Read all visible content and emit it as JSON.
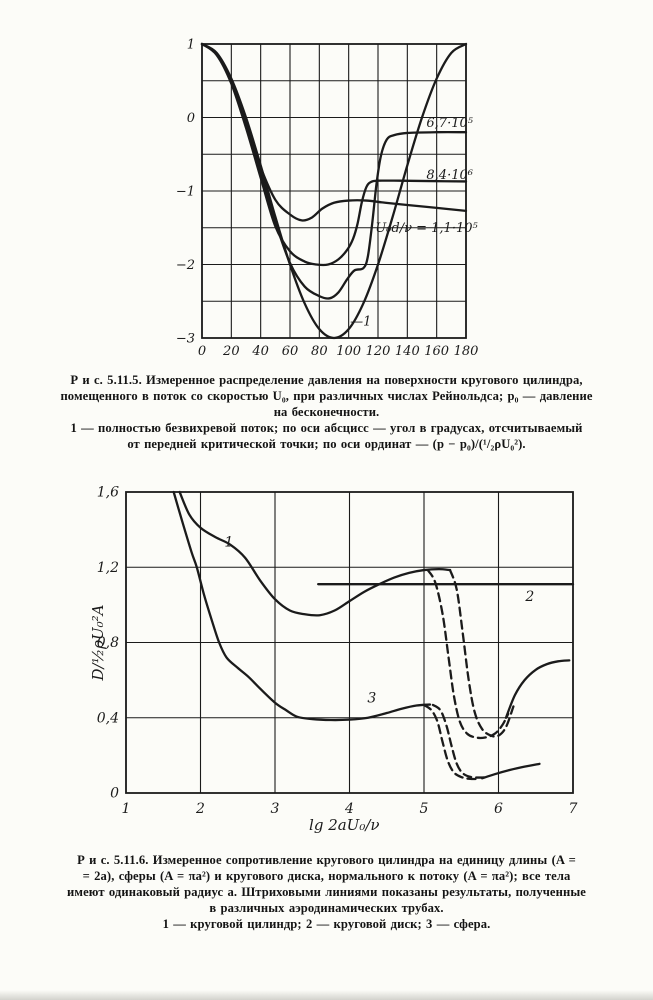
{
  "page": {
    "background": "#fcfcf8",
    "ink": "#1b1b1b"
  },
  "figures": {
    "fig_5_11_5": {
      "caption_lines": [
        "Р и с. 5.11.5. Измеренное распределение давления на поверхности кругового цилиндра,",
        "помещенного в поток со скоростью U₀, при различных числах Рейнольдса; p₀ — давление",
        "на бесконечности.",
        "1 — полностью безвихревой поток; по оси абсцисс — угол в градусах, отсчитываемый",
        "от передней критической точки; по оси ординат — (p − p₀)/(¹/₂ρU₀²)."
      ]
    },
    "fig_5_11_6": {
      "caption_lines": [
        "Р и с. 5.11.6. Измеренное сопротивление кругового цилиндра на единицу длины (A =",
        "= 2a), сферы (A = πa²) и кругового диска, нормального к потоку (A = πa²); все тела",
        "имеют одинаковый радиус a. Штриховыми линиями показаны результаты, полученные",
        "в различных аэродинамических трубах.",
        "1 — круговой цилиндр; 2 — круговой диск; 3 — сфера."
      ]
    }
  },
  "chart_data": [
    {
      "id": "pressure",
      "type": "line",
      "title": "",
      "xlabel": "",
      "ylabel": "",
      "xlim": [
        0,
        180
      ],
      "ylim": [
        -3,
        1
      ],
      "grid": true,
      "x_gridlines": [
        0,
        20,
        40,
        60,
        80,
        100,
        120,
        140,
        160,
        180
      ],
      "y_gridlines": [
        1,
        0.5,
        0,
        -0.5,
        -1,
        -1.5,
        -2,
        -2.5,
        -3
      ],
      "x_ticks": [
        {
          "v": 0,
          "label": "0"
        },
        {
          "v": 20,
          "label": "20"
        },
        {
          "v": 40,
          "label": "40"
        },
        {
          "v": 60,
          "label": "60"
        },
        {
          "v": 80,
          "label": "80"
        },
        {
          "v": 100,
          "label": "100"
        },
        {
          "v": 120,
          "label": "120"
        },
        {
          "v": 140,
          "label": "140"
        },
        {
          "v": 160,
          "label": "160"
        },
        {
          "v": 180,
          "label": "180"
        }
      ],
      "y_ticks": [
        {
          "v": 1,
          "label": "1"
        },
        {
          "v": 0,
          "label": "0"
        },
        {
          "v": -1,
          "label": "−1"
        },
        {
          "v": -2,
          "label": "−2"
        },
        {
          "v": -3,
          "label": "−3"
        }
      ],
      "series": [
        {
          "name": "irrotational-flow-1",
          "dash": false,
          "points": [
            [
              0,
              1
            ],
            [
              10,
              0.88
            ],
            [
              20,
              0.53
            ],
            [
              30,
              0
            ],
            [
              40,
              -0.65
            ],
            [
              50,
              -1.35
            ],
            [
              60,
              -2
            ],
            [
              70,
              -2.53
            ],
            [
              80,
              -2.88
            ],
            [
              90,
              -3
            ],
            [
              100,
              -2.88
            ],
            [
              110,
              -2.53
            ],
            [
              120,
              -2
            ],
            [
              130,
              -1.35
            ],
            [
              140,
              -0.65
            ],
            [
              150,
              0
            ],
            [
              160,
              0.53
            ],
            [
              170,
              0.88
            ],
            [
              180,
              1
            ]
          ]
        },
        {
          "name": "re-1.1e5",
          "dash": false,
          "points": [
            [
              0,
              1
            ],
            [
              10,
              0.86
            ],
            [
              20,
              0.48
            ],
            [
              30,
              -0.1
            ],
            [
              40,
              -0.68
            ],
            [
              50,
              -1.12
            ],
            [
              60,
              -1.32
            ],
            [
              68,
              -1.4
            ],
            [
              75,
              -1.36
            ],
            [
              82,
              -1.24
            ],
            [
              90,
              -1.16
            ],
            [
              100,
              -1.13
            ],
            [
              112,
              -1.13
            ],
            [
              125,
              -1.16
            ],
            [
              140,
              -1.19
            ],
            [
              160,
              -1.23
            ],
            [
              180,
              -1.27
            ]
          ]
        },
        {
          "name": "re-6.7e5",
          "dash": false,
          "points": [
            [
              0,
              1
            ],
            [
              10,
              0.87
            ],
            [
              20,
              0.5
            ],
            [
              30,
              -0.06
            ],
            [
              40,
              -0.75
            ],
            [
              50,
              -1.42
            ],
            [
              60,
              -1.98
            ],
            [
              70,
              -2.3
            ],
            [
              80,
              -2.43
            ],
            [
              87,
              -2.46
            ],
            [
              93,
              -2.38
            ],
            [
              99,
              -2.2
            ],
            [
              104,
              -2.08
            ],
            [
              110,
              -2.05
            ],
            [
              113,
              -1.9
            ],
            [
              116,
              -1.45
            ],
            [
              119,
              -0.9
            ],
            [
              122,
              -0.52
            ],
            [
              126,
              -0.3
            ],
            [
              131,
              -0.24
            ],
            [
              140,
              -0.21
            ],
            [
              160,
              -0.2
            ],
            [
              180,
              -0.2
            ]
          ]
        },
        {
          "name": "re-8.4e6",
          "dash": false,
          "points": [
            [
              0,
              1
            ],
            [
              10,
              0.85
            ],
            [
              20,
              0.46
            ],
            [
              30,
              -0.14
            ],
            [
              40,
              -0.82
            ],
            [
              50,
              -1.48
            ],
            [
              60,
              -1.82
            ],
            [
              70,
              -1.96
            ],
            [
              78,
              -2
            ],
            [
              86,
              -2
            ],
            [
              93,
              -1.93
            ],
            [
              99,
              -1.8
            ],
            [
              103,
              -1.65
            ],
            [
              106,
              -1.45
            ],
            [
              109,
              -1.15
            ],
            [
              112,
              -0.95
            ],
            [
              115,
              -0.88
            ],
            [
              120,
              -0.86
            ],
            [
              135,
              -0.86
            ],
            [
              155,
              -0.865
            ],
            [
              180,
              -0.87
            ]
          ]
        }
      ],
      "annotations": [
        {
          "text": "6,7·10⁵",
          "x": 153,
          "y": -0.13,
          "anchor": "start",
          "fs": 13
        },
        {
          "text": "8,4·10⁶",
          "x": 153,
          "y": -0.84,
          "anchor": "start",
          "fs": 13
        },
        {
          "text": "U₀d/ν = 1,1·10⁵",
          "x": 188,
          "y": -1.56,
          "anchor": "end",
          "fs": 13
        },
        {
          "text": "—1",
          "x": 101,
          "y": -2.83,
          "anchor": "start",
          "fs": 13
        }
      ]
    },
    {
      "id": "drag",
      "type": "line",
      "title": "",
      "xlabel": "lg 2aU₀/ν",
      "xlabel_x": 3.93,
      "ylabel": "D/½ρU₀²A",
      "xlim": [
        1,
        7
      ],
      "ylim": [
        0,
        1.6
      ],
      "grid": true,
      "x_gridlines": [
        1,
        2,
        3,
        4,
        5,
        6,
        7
      ],
      "y_gridlines": [
        0,
        0.4,
        0.8,
        1.2,
        1.6
      ],
      "x_ticks": [
        {
          "v": 1,
          "label": "1"
        },
        {
          "v": 2,
          "label": "2"
        },
        {
          "v": 3,
          "label": "3"
        },
        {
          "v": 4,
          "label": "4"
        },
        {
          "v": 5,
          "label": "5"
        },
        {
          "v": 6,
          "label": "6"
        },
        {
          "v": 7,
          "label": "7"
        }
      ],
      "y_ticks": [
        {
          "v": 0,
          "label": "0"
        },
        {
          "v": 0.4,
          "label": "0,4"
        },
        {
          "v": 0.8,
          "label": "0,8"
        },
        {
          "v": 1.2,
          "label": "1,2"
        },
        {
          "v": 1.6,
          "label": "1,6"
        }
      ],
      "series": [
        {
          "name": "cylinder-1",
          "dash": false,
          "points": [
            [
              1.72,
              1.6
            ],
            [
              1.85,
              1.48
            ],
            [
              2,
              1.41
            ],
            [
              2.2,
              1.36
            ],
            [
              2.4,
              1.32
            ],
            [
              2.6,
              1.25
            ],
            [
              2.8,
              1.13
            ],
            [
              3,
              1.03
            ],
            [
              3.2,
              0.97
            ],
            [
              3.4,
              0.95
            ],
            [
              3.6,
              0.945
            ],
            [
              3.8,
              0.97
            ],
            [
              4,
              1.02
            ],
            [
              4.2,
              1.07
            ],
            [
              4.4,
              1.11
            ],
            [
              4.6,
              1.145
            ],
            [
              4.8,
              1.17
            ],
            [
              5,
              1.185
            ],
            [
              5.2,
              1.19
            ],
            [
              5.35,
              1.185
            ]
          ]
        },
        {
          "name": "cylinder-drop-a",
          "dash": true,
          "points": [
            [
              5.05,
              1.185
            ],
            [
              5.15,
              1.12
            ],
            [
              5.25,
              0.95
            ],
            [
              5.33,
              0.72
            ],
            [
              5.4,
              0.52
            ],
            [
              5.48,
              0.38
            ],
            [
              5.58,
              0.315
            ],
            [
              5.7,
              0.295
            ],
            [
              5.82,
              0.295
            ],
            [
              5.95,
              0.315
            ],
            [
              6.05,
              0.36
            ],
            [
              6.13,
              0.42
            ]
          ]
        },
        {
          "name": "cylinder-drop-b",
          "dash": true,
          "points": [
            [
              5.35,
              1.185
            ],
            [
              5.44,
              1.08
            ],
            [
              5.52,
              0.85
            ],
            [
              5.6,
              0.6
            ],
            [
              5.68,
              0.43
            ],
            [
              5.78,
              0.34
            ],
            [
              5.9,
              0.305
            ],
            [
              6,
              0.305
            ],
            [
              6.1,
              0.35
            ],
            [
              6.2,
              0.46
            ]
          ]
        },
        {
          "name": "cylinder-recovery",
          "dash": false,
          "points": [
            [
              6.1,
              0.4
            ],
            [
              6.22,
              0.52
            ],
            [
              6.35,
              0.6
            ],
            [
              6.5,
              0.655
            ],
            [
              6.65,
              0.685
            ],
            [
              6.8,
              0.7
            ],
            [
              6.95,
              0.705
            ]
          ]
        },
        {
          "name": "disk-2",
          "dash": false,
          "points": [
            [
              3.58,
              1.11
            ],
            [
              7,
              1.11
            ]
          ]
        },
        {
          "name": "sphere-3",
          "dash": false,
          "points": [
            [
              1.64,
              1.6
            ],
            [
              1.75,
              1.45
            ],
            [
              1.88,
              1.28
            ],
            [
              1.95,
              1.2
            ],
            [
              2.05,
              1.05
            ],
            [
              2.15,
              0.92
            ],
            [
              2.25,
              0.8
            ],
            [
              2.35,
              0.72
            ],
            [
              2.5,
              0.665
            ],
            [
              2.65,
              0.615
            ],
            [
              2.8,
              0.555
            ],
            [
              3,
              0.48
            ],
            [
              3.15,
              0.44
            ],
            [
              3.3,
              0.405
            ],
            [
              3.5,
              0.393
            ],
            [
              3.75,
              0.388
            ],
            [
              4,
              0.39
            ],
            [
              4.25,
              0.4
            ],
            [
              4.5,
              0.425
            ],
            [
              4.7,
              0.448
            ],
            [
              4.9,
              0.465
            ],
            [
              5.08,
              0.47
            ]
          ]
        },
        {
          "name": "sphere-drop-a",
          "dash": true,
          "points": [
            [
              5,
              0.468
            ],
            [
              5.1,
              0.44
            ],
            [
              5.18,
              0.38
            ],
            [
              5.25,
              0.27
            ],
            [
              5.32,
              0.17
            ],
            [
              5.4,
              0.11
            ],
            [
              5.5,
              0.085
            ],
            [
              5.62,
              0.075
            ],
            [
              5.74,
              0.075
            ]
          ]
        },
        {
          "name": "sphere-drop-b",
          "dash": true,
          "points": [
            [
              5.12,
              0.468
            ],
            [
              5.22,
              0.44
            ],
            [
              5.3,
              0.36
            ],
            [
              5.37,
              0.25
            ],
            [
              5.44,
              0.155
            ],
            [
              5.52,
              0.105
            ],
            [
              5.63,
              0.085
            ],
            [
              5.76,
              0.082
            ],
            [
              5.86,
              0.085
            ]
          ]
        },
        {
          "name": "sphere-recovery",
          "dash": false,
          "points": [
            [
              5.78,
              0.078
            ],
            [
              5.95,
              0.1
            ],
            [
              6.15,
              0.122
            ],
            [
              6.35,
              0.14
            ],
            [
              6.55,
              0.155
            ]
          ]
        }
      ],
      "annotations": [
        {
          "text": "1",
          "x": 2.38,
          "y": 1.31,
          "anchor": "middle",
          "fs": 14
        },
        {
          "text": "2",
          "x": 6.42,
          "y": 1.02,
          "anchor": "middle",
          "fs": 14
        },
        {
          "text": "3",
          "x": 4.3,
          "y": 0.48,
          "anchor": "middle",
          "fs": 14
        }
      ]
    }
  ]
}
